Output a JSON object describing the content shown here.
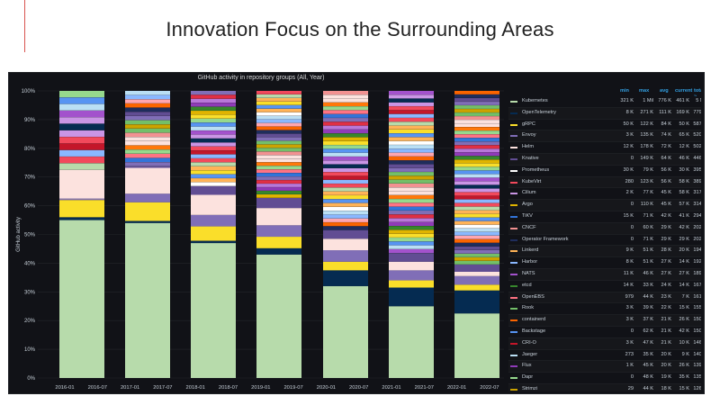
{
  "slide": {
    "title": "Innovation Focus on the Surrounding Areas"
  },
  "panel": {
    "title": "GitHub activity in repository groups (All, Year)"
  },
  "legend_headers": {
    "min": "min",
    "max": "max",
    "avg": "avg",
    "current": "current",
    "total": "total ~"
  },
  "legend": [
    {
      "name": "Kubernetes",
      "color": "#b7dbab",
      "min": "321 K",
      "max": "1 Mil",
      "avg": "776 K",
      "current": "461 K",
      "total": "5 Mil"
    },
    {
      "name": "OpenTelemetry",
      "color": "#052b51",
      "min": "8 K",
      "max": "271 K",
      "avg": "111 K",
      "current": "169 K",
      "total": "779 K"
    },
    {
      "name": "gRPC",
      "color": "#fade2a",
      "min": "50 K",
      "max": "122 K",
      "avg": "84 K",
      "current": "50 K",
      "total": "587 K"
    },
    {
      "name": "Envoy",
      "color": "#806eb7",
      "min": "3 K",
      "max": "135 K",
      "avg": "74 K",
      "current": "65 K",
      "total": "520 K"
    },
    {
      "name": "Helm",
      "color": "#fce2de",
      "min": "12 K",
      "max": "178 K",
      "avg": "72 K",
      "current": "12 K",
      "total": "502 K"
    },
    {
      "name": "Knative",
      "color": "#614d93",
      "min": "0",
      "max": "149 K",
      "avg": "64 K",
      "current": "46 K",
      "total": "446 K"
    },
    {
      "name": "Prometheus",
      "color": "#ffffff",
      "min": "30 K",
      "max": "79 K",
      "avg": "56 K",
      "current": "30 K",
      "total": "395 K"
    },
    {
      "name": "KubeVirt",
      "color": "#f2495c",
      "min": "280",
      "max": "123 K",
      "avg": "56 K",
      "current": "58 K",
      "total": "389 K"
    },
    {
      "name": "Cilium",
      "color": "#ca95e5",
      "min": "2 K",
      "max": "77 K",
      "avg": "45 K",
      "current": "58 K",
      "total": "317 K"
    },
    {
      "name": "Argo",
      "color": "#e0b400",
      "min": "0",
      "max": "110 K",
      "avg": "45 K",
      "current": "57 K",
      "total": "314 K"
    },
    {
      "name": "TiKV",
      "color": "#3274d9",
      "min": "15 K",
      "max": "71 K",
      "avg": "42 K",
      "current": "41 K",
      "total": "294 K"
    },
    {
      "name": "CNCF",
      "color": "#f29191",
      "min": "0",
      "max": "60 K",
      "avg": "29 K",
      "current": "42 K",
      "total": "202 K"
    },
    {
      "name": "Operator Framework",
      "color": "#1f2d5c",
      "min": "0",
      "max": "71 K",
      "avg": "29 K",
      "current": "29 K",
      "total": "202 K"
    },
    {
      "name": "Linkerd",
      "color": "#ffb357",
      "min": "9 K",
      "max": "51 K",
      "avg": "28 K",
      "current": "20 K",
      "total": "194 K"
    },
    {
      "name": "Harbor",
      "color": "#8ab8ff",
      "min": "8 K",
      "max": "51 K",
      "avg": "27 K",
      "current": "14 K",
      "total": "192 K"
    },
    {
      "name": "NATS",
      "color": "#a352cc",
      "min": "11 K",
      "max": "46 K",
      "avg": "27 K",
      "current": "27 K",
      "total": "189 K"
    },
    {
      "name": "etcd",
      "color": "#37872d",
      "min": "14 K",
      "max": "33 K",
      "avg": "24 K",
      "current": "14 K",
      "total": "167 K"
    },
    {
      "name": "OpenEBS",
      "color": "#ff7383",
      "min": "979",
      "max": "44 K",
      "avg": "23 K",
      "current": "7 K",
      "total": "161 K"
    },
    {
      "name": "Rook",
      "color": "#73bf69",
      "min": "3 K",
      "max": "39 K",
      "avg": "22 K",
      "current": "15 K",
      "total": "155 K"
    },
    {
      "name": "containerd",
      "color": "#fa6400",
      "min": "3 K",
      "max": "37 K",
      "avg": "21 K",
      "current": "26 K",
      "total": "150 K"
    },
    {
      "name": "Backstage",
      "color": "#5794f2",
      "min": "0",
      "max": "62 K",
      "avg": "21 K",
      "current": "42 K",
      "total": "150 K"
    },
    {
      "name": "CRI-O",
      "color": "#c4162a",
      "min": "3 K",
      "max": "47 K",
      "avg": "21 K",
      "current": "10 K",
      "total": "146 K"
    },
    {
      "name": "Jaeger",
      "color": "#badff4",
      "min": "273",
      "max": "35 K",
      "avg": "20 K",
      "current": "9 K",
      "total": "140 K"
    },
    {
      "name": "Flux",
      "color": "#8f3bb8",
      "min": "1 K",
      "max": "45 K",
      "avg": "20 K",
      "current": "26 K",
      "total": "139 K"
    },
    {
      "name": "Dapr",
      "color": "#96d98d",
      "min": "0",
      "max": "48 K",
      "avg": "19 K",
      "current": "35 K",
      "total": "135 K"
    },
    {
      "name": "Strimzi",
      "color": "#cca300",
      "min": "29",
      "max": "44 K",
      "avg": "18 K",
      "current": "15 K",
      "total": "126 K"
    },
    {
      "name": "Vitess",
      "color": "#ffa6b0",
      "min": "8 K",
      "max": "30 K",
      "avg": "16 K",
      "current": "20 K",
      "total": "113 K"
    }
  ],
  "chart_data": {
    "type": "bar",
    "stacked": true,
    "normalized": true,
    "title": "GitHub activity in repository groups (All, Year)",
    "ylabel": "GitHub activity",
    "ylim": [
      0,
      100
    ],
    "yticks": [
      "0%",
      "10%",
      "20%",
      "30%",
      "40%",
      "50%",
      "60%",
      "70%",
      "80%",
      "90%",
      "100%"
    ],
    "xticks": [
      "2016-01",
      "2016-07",
      "2017-01",
      "2017-07",
      "2018-01",
      "2018-07",
      "2019-01",
      "2019-07",
      "2020-01",
      "2020-07",
      "2021-01",
      "2021-07",
      "2022-01",
      "2022-07"
    ],
    "categories": [
      "2016",
      "2017",
      "2018",
      "2019",
      "2020",
      "2021",
      "2022"
    ],
    "series": [
      {
        "name": "Kubernetes",
        "color": "#b7dbab",
        "values": [
          55,
          54,
          47,
          43,
          32,
          25,
          22.5
        ]
      },
      {
        "name": "OpenTelemetry",
        "color": "#052b51",
        "values": [
          1,
          0.7,
          0.8,
          2.2,
          5.5,
          6.5,
          8
        ]
      },
      {
        "name": "gRPC",
        "color": "#fade2a",
        "values": [
          6,
          6.5,
          5,
          4,
          3,
          2.5,
          2
        ]
      },
      {
        "name": "Envoy",
        "color": "#806eb7",
        "values": [
          0.5,
          3,
          4,
          4,
          4,
          3.5,
          3
        ]
      },
      {
        "name": "Helm",
        "color": "#fce2de",
        "values": [
          10,
          9,
          7,
          6,
          4,
          3,
          1.5
        ]
      },
      {
        "name": "Knative",
        "color": "#614d93",
        "values": [
          0,
          0.5,
          3,
          3.5,
          3,
          3,
          2.5
        ]
      }
    ],
    "other_share_remaining_percent": true
  },
  "colors": {
    "background": "#111217",
    "axis_text": "#c7d0d9",
    "accent": "#33a2e5",
    "redline": "#d9534f"
  }
}
